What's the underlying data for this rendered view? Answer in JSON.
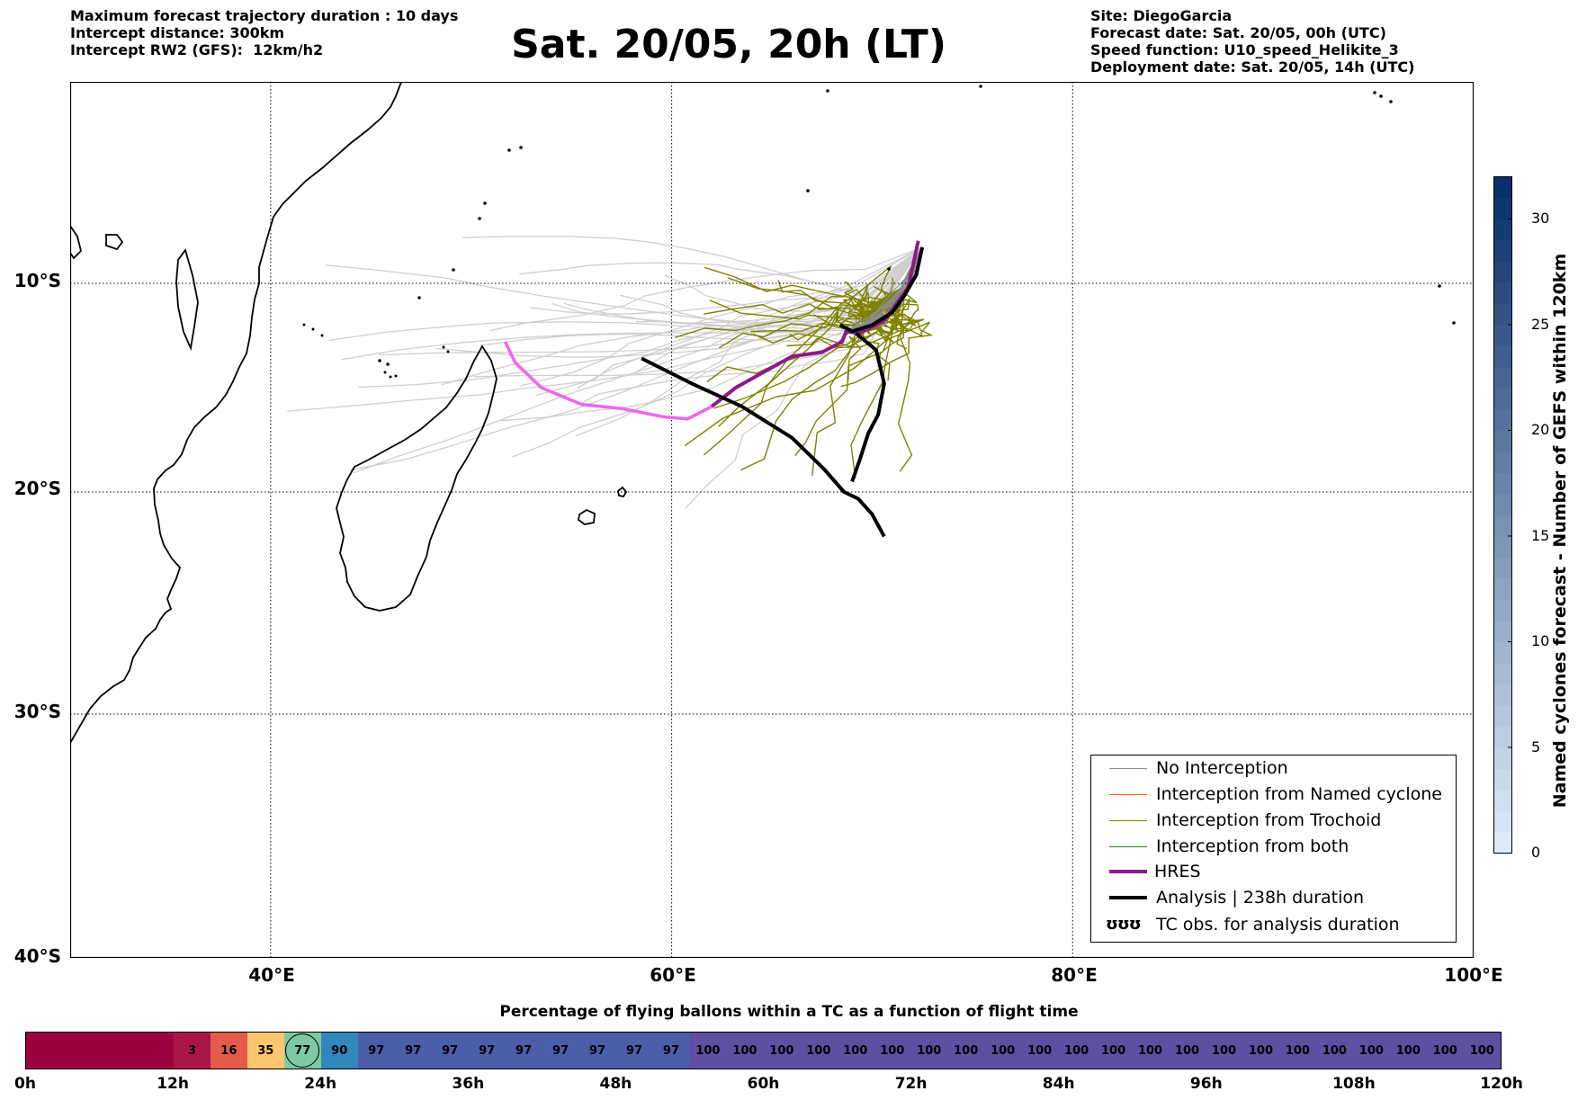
{
  "header_left": {
    "line1": "Maximum forecast trajectory duration : 10 days",
    "line2": "Intercept distance: 300km",
    "line3": "Intercept RW2 (GFS):  12km/h2"
  },
  "title": "Sat. 20/05, 20h (LT)",
  "header_right": {
    "line1": "Site: DiegoGarcia",
    "line2": "Forecast date: Sat. 20/05, 00h (UTC)",
    "line3": "Speed function: U10_speed_Helikite_3",
    "line4": "Deployment date: Sat. 20/05, 14h (UTC)"
  },
  "map": {
    "lat_labels": [
      "10°S",
      "20°S",
      "30°S",
      "40°S"
    ],
    "lon_labels": [
      "40°E",
      "60°E",
      "80°E",
      "100°E"
    ],
    "extent": {
      "lon_min": 30,
      "lon_max": 100,
      "lat_top": -0.5,
      "lat_bottom": -40
    },
    "gridlines": "dotted",
    "analysis_track": [
      [
        58.5,
        -13.6
      ],
      [
        61,
        -14.8
      ],
      [
        63.5,
        -15.9
      ],
      [
        66,
        -17.4
      ],
      [
        67.6,
        -18.9
      ],
      [
        68.6,
        -20.0
      ],
      [
        69.3,
        -20.3
      ],
      [
        70.0,
        -21.0
      ],
      [
        70.6,
        -22.0
      ]
    ],
    "analysis_loop_track": [
      [
        68.4,
        -12.0
      ],
      [
        69.0,
        -12.3
      ],
      [
        70.0,
        -12.0
      ],
      [
        71.0,
        -11.4
      ],
      [
        71.6,
        -10.6
      ],
      [
        72.2,
        -9.6
      ],
      [
        72.5,
        -8.3
      ]
    ],
    "analysis_branch_track": [
      [
        69.2,
        -12.4
      ],
      [
        70.2,
        -13.2
      ],
      [
        70.6,
        -14.8
      ],
      [
        70.3,
        -16.3
      ],
      [
        69.8,
        -17.2
      ],
      [
        69.4,
        -18.4
      ],
      [
        69.0,
        -19.5
      ]
    ],
    "hres_track": [
      [
        72.3,
        -8.0
      ],
      [
        71.8,
        -10.2
      ],
      [
        70.6,
        -11.8
      ],
      [
        69.3,
        -12.4
      ],
      [
        68.7,
        -12.3
      ],
      [
        68.5,
        -12.8
      ],
      [
        67.5,
        -13.3
      ],
      [
        66,
        -13.5
      ],
      [
        64.5,
        -14.3
      ],
      [
        63.2,
        -15.0
      ],
      [
        62.0,
        -15.9
      ]
    ],
    "hres_light_track": [
      [
        62.0,
        -15.9
      ],
      [
        60.8,
        -16.5
      ],
      [
        59.6,
        -16.4
      ],
      [
        57.5,
        -16.0
      ],
      [
        55.5,
        -15.8
      ],
      [
        53.5,
        -15.0
      ],
      [
        52.2,
        -13.8
      ],
      [
        51.7,
        -12.8
      ]
    ],
    "colors": {
      "no_interception": "#8c8c8c",
      "named_cyclone": "#ff5a1a",
      "trochoid": "#808000",
      "both": "#1a8a1a",
      "hres": "#8b1a8b",
      "hres_light": "#ee66ee",
      "analysis": "#000000",
      "faded_track": "#cfcfcf"
    }
  },
  "legend": {
    "items": [
      {
        "label": "No Interception",
        "color": "#8c8c8c",
        "width": 1
      },
      {
        "label": "Interception from Named cyclone",
        "color": "#ff5a1a",
        "width": 1
      },
      {
        "label": "Interception from Trochoid",
        "color": "#808000",
        "width": 1
      },
      {
        "label": "Interception from both",
        "color": "#1a8a1a",
        "width": 1
      },
      {
        "label": "HRES",
        "color": "#8b1a8b",
        "width": 4
      },
      {
        "label": "Analysis | 238h duration",
        "color": "#000000",
        "width": 4
      },
      {
        "label": "TC obs. for analysis duration",
        "icon": "cyclone-symbols-icon",
        "symbol": "ʊʊʊ"
      }
    ]
  },
  "colorbar": {
    "label": "Named cyclones forecast - Number of GEFS within 120km",
    "min": 0,
    "max": 32,
    "ticks": [
      "0",
      "5",
      "10",
      "15",
      "20",
      "25",
      "30"
    ]
  },
  "timeline": {
    "title": "Percentage of flying ballons within a TC as a function of flight time",
    "segments": [
      {
        "value": "",
        "color": "#9e0142"
      },
      {
        "value": "",
        "color": "#9e0142"
      },
      {
        "value": "",
        "color": "#9e0142"
      },
      {
        "value": "",
        "color": "#9e0142"
      },
      {
        "value": "3",
        "color": "#ab1649"
      },
      {
        "value": "16",
        "color": "#e55b4a"
      },
      {
        "value": "35",
        "color": "#fcc66f"
      },
      {
        "value": "77",
        "color": "#7fc8a2"
      },
      {
        "value": "90",
        "color": "#3288bd"
      },
      {
        "value": "97",
        "color": "#4b5eaa"
      },
      {
        "value": "97",
        "color": "#4b5eaa"
      },
      {
        "value": "97",
        "color": "#4b5eaa"
      },
      {
        "value": "97",
        "color": "#4b5eaa"
      },
      {
        "value": "97",
        "color": "#4b5eaa"
      },
      {
        "value": "97",
        "color": "#4b5eaa"
      },
      {
        "value": "97",
        "color": "#4b5eaa"
      },
      {
        "value": "97",
        "color": "#4b5eaa"
      },
      {
        "value": "97",
        "color": "#4b5eaa"
      },
      {
        "value": "100",
        "color": "#5e4fa2"
      },
      {
        "value": "100",
        "color": "#5e4fa2"
      },
      {
        "value": "100",
        "color": "#5e4fa2"
      },
      {
        "value": "100",
        "color": "#5e4fa2"
      },
      {
        "value": "100",
        "color": "#5e4fa2"
      },
      {
        "value": "100",
        "color": "#5e4fa2"
      },
      {
        "value": "100",
        "color": "#5e4fa2"
      },
      {
        "value": "100",
        "color": "#5e4fa2"
      },
      {
        "value": "100",
        "color": "#5e4fa2"
      },
      {
        "value": "100",
        "color": "#5e4fa2"
      },
      {
        "value": "100",
        "color": "#5e4fa2"
      },
      {
        "value": "100",
        "color": "#5e4fa2"
      },
      {
        "value": "100",
        "color": "#5e4fa2"
      },
      {
        "value": "100",
        "color": "#5e4fa2"
      },
      {
        "value": "100",
        "color": "#5e4fa2"
      },
      {
        "value": "100",
        "color": "#5e4fa2"
      },
      {
        "value": "100",
        "color": "#5e4fa2"
      },
      {
        "value": "100",
        "color": "#5e4fa2"
      },
      {
        "value": "100",
        "color": "#5e4fa2"
      },
      {
        "value": "100",
        "color": "#5e4fa2"
      },
      {
        "value": "100",
        "color": "#5e4fa2"
      },
      {
        "value": "100",
        "color": "#5e4fa2"
      }
    ],
    "tick_labels": [
      "0h",
      "12h",
      "24h",
      "36h",
      "48h",
      "60h",
      "72h",
      "84h",
      "96h",
      "108h",
      "120h"
    ]
  }
}
